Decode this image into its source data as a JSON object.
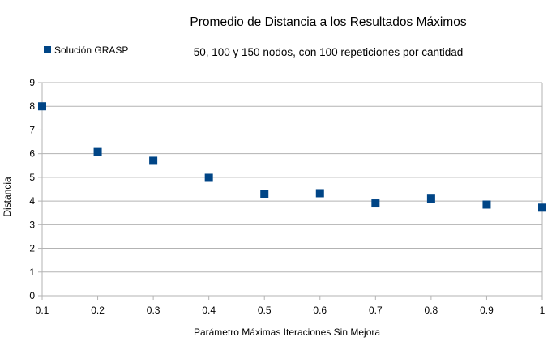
{
  "chart_data": {
    "type": "scatter",
    "title": "Promedio de Distancia a los Resultados Máximos",
    "subtitle": "50, 100 y 150 nodos, con 100 repeticiones por cantidad",
    "xlabel": "Parámetro Máximas Iteraciones Sin Mejora",
    "ylabel": "Distancia",
    "xlim": [
      0.1,
      1
    ],
    "ylim": [
      0,
      9
    ],
    "x_ticks": [
      "0.1",
      "0.2",
      "0.3",
      "0.4",
      "0.5",
      "0.6",
      "0.7",
      "0.8",
      "0.9",
      "1"
    ],
    "y_ticks": [
      "0",
      "1",
      "2",
      "3",
      "4",
      "5",
      "6",
      "7",
      "8",
      "9"
    ],
    "grid": "horizontal",
    "legend_position": "top-left",
    "marker": "square",
    "series": [
      {
        "name": "Solución GRASP",
        "color": "#004586",
        "x": [
          0.1,
          0.2,
          0.3,
          0.4,
          0.5,
          0.6,
          0.7,
          0.8,
          0.9,
          1.0
        ],
        "y": [
          8.0,
          6.07,
          5.7,
          4.98,
          4.28,
          4.33,
          3.9,
          4.1,
          3.85,
          3.72
        ]
      }
    ]
  }
}
